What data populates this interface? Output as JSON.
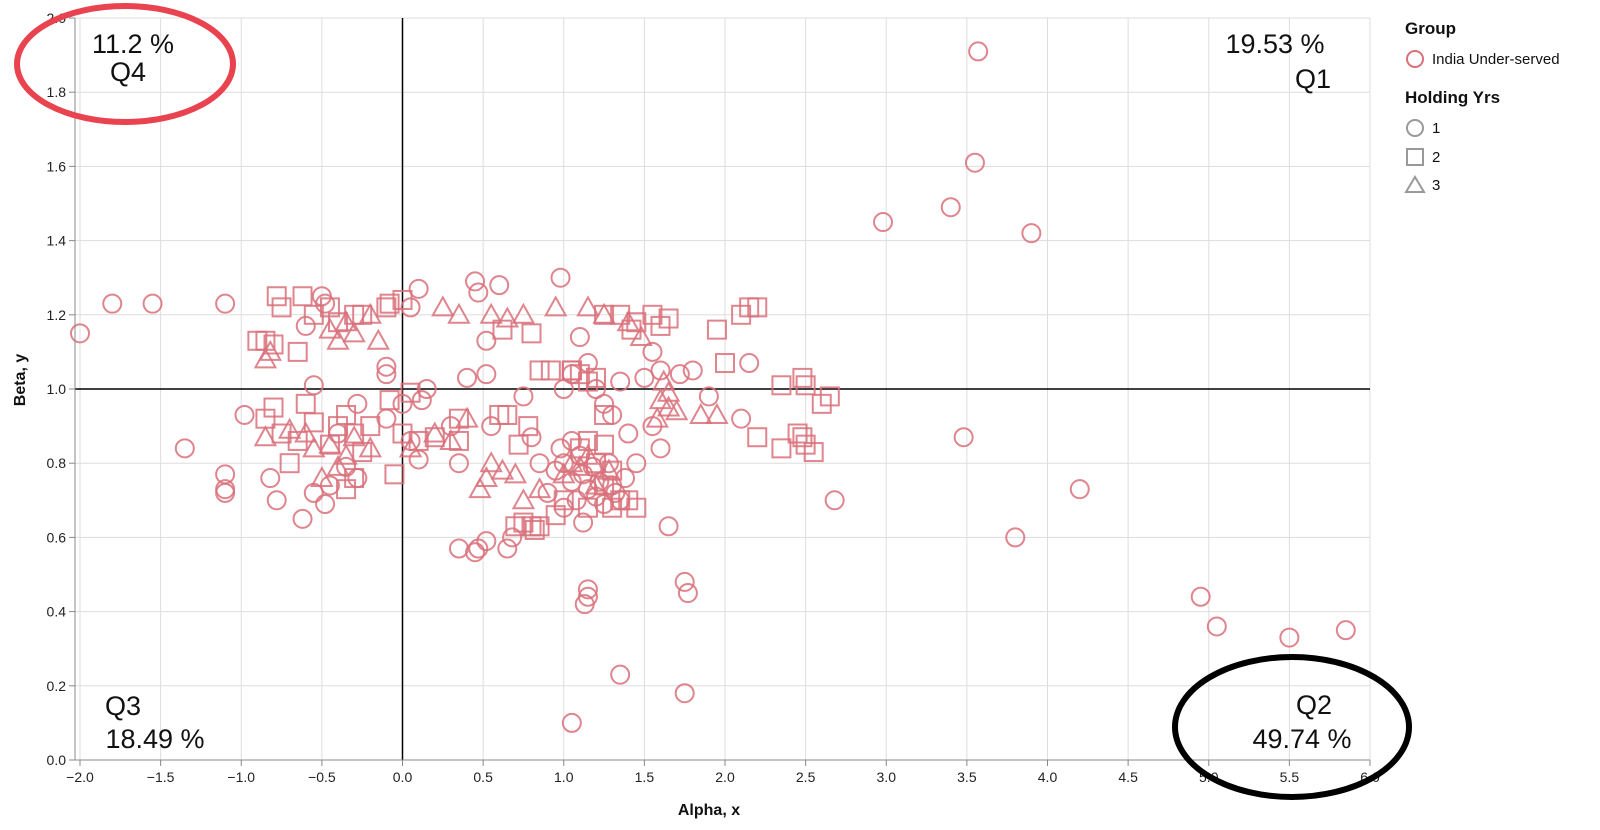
{
  "chart_data": {
    "type": "scatter",
    "xlabel": "Alpha, x",
    "ylabel": "Beta, y",
    "xlim": [
      -2.05,
      6.0
    ],
    "ylim": [
      0.0,
      2.0
    ],
    "x_ticks": [
      "−2.0",
      "−1.5",
      "−1.0",
      "−0.5",
      "0.0",
      "0.5",
      "1.0",
      "1.5",
      "2.0",
      "2.5",
      "3.0",
      "3.5",
      "4.0",
      "4.5",
      "5.0",
      "5.5",
      "6.0"
    ],
    "y_ticks": [
      "0.0",
      "0.2",
      "0.4",
      "0.6",
      "0.8",
      "1.0",
      "1.2",
      "1.4",
      "1.6",
      "1.8",
      "2.0"
    ],
    "grid": true,
    "reference_lines": {
      "x": 0.0,
      "y": 1.0
    },
    "marker_color": "#d9707a",
    "quadrant_labels": [
      {
        "name": "Q4",
        "percent": "11.2 %",
        "position": "top-left",
        "circled": "#e8434f"
      },
      {
        "name": "Q1",
        "percent": "19.53 %",
        "position": "top-right"
      },
      {
        "name": "Q3",
        "percent": "18.49 %",
        "position": "bottom-left"
      },
      {
        "name": "Q2",
        "percent": "49.74 %",
        "position": "bottom-right",
        "circled": "#000000"
      }
    ],
    "legend": {
      "placement": "right",
      "group_title": "Group",
      "group_items": [
        {
          "label": "India Under-served",
          "color": "#d9707a"
        }
      ],
      "shape_title": "Holding Yrs",
      "shape_items": [
        {
          "label": "1",
          "shape": "circle"
        },
        {
          "label": "2",
          "shape": "square"
        },
        {
          "label": "3",
          "shape": "triangle"
        }
      ]
    },
    "series": [
      {
        "holding": "1",
        "shape": "circle",
        "points": [
          [
            -2.0,
            1.15
          ],
          [
            -1.8,
            1.23
          ],
          [
            -1.55,
            1.23
          ],
          [
            -1.1,
            1.23
          ],
          [
            -1.35,
            0.84
          ],
          [
            -1.1,
            0.77
          ],
          [
            -1.1,
            0.73
          ],
          [
            -1.1,
            0.72
          ],
          [
            -0.98,
            0.93
          ],
          [
            -0.82,
            0.76
          ],
          [
            -0.78,
            0.7
          ],
          [
            -0.62,
            0.65
          ],
          [
            -0.55,
            0.72
          ],
          [
            -0.48,
            0.69
          ],
          [
            -0.45,
            0.74
          ],
          [
            -0.55,
            1.01
          ],
          [
            -0.5,
            1.25
          ],
          [
            -0.48,
            1.23
          ],
          [
            -0.6,
            1.17
          ],
          [
            -0.4,
            0.88
          ],
          [
            -0.35,
            0.79
          ],
          [
            -0.28,
            0.76
          ],
          [
            -0.28,
            0.96
          ],
          [
            -0.1,
            0.92
          ],
          [
            0.0,
            0.96
          ],
          [
            0.05,
            0.86
          ],
          [
            0.1,
            0.81
          ],
          [
            0.12,
            0.97
          ],
          [
            0.15,
            1.0
          ],
          [
            0.1,
            1.27
          ],
          [
            0.05,
            1.22
          ],
          [
            -0.1,
            1.06
          ],
          [
            -0.1,
            1.04
          ],
          [
            0.3,
            0.9
          ],
          [
            0.35,
            0.8
          ],
          [
            0.35,
            0.57
          ],
          [
            0.45,
            0.56
          ],
          [
            0.47,
            0.57
          ],
          [
            0.52,
            0.59
          ],
          [
            0.65,
            0.57
          ],
          [
            0.68,
            0.6
          ],
          [
            0.45,
            1.29
          ],
          [
            0.47,
            1.26
          ],
          [
            0.6,
            1.28
          ],
          [
            0.52,
            1.13
          ],
          [
            0.4,
            1.03
          ],
          [
            0.52,
            1.04
          ],
          [
            0.55,
            0.9
          ],
          [
            0.75,
            0.98
          ],
          [
            0.8,
            0.87
          ],
          [
            0.85,
            0.8
          ],
          [
            0.98,
            1.3
          ],
          [
            1.0,
            1.0
          ],
          [
            1.05,
            1.04
          ],
          [
            1.1,
            1.14
          ],
          [
            1.15,
            1.07
          ],
          [
            1.2,
            1.0
          ],
          [
            1.25,
            0.96
          ],
          [
            1.3,
            0.93
          ],
          [
            1.35,
            1.02
          ],
          [
            1.4,
            0.88
          ],
          [
            1.45,
            0.8
          ],
          [
            1.5,
            1.03
          ],
          [
            1.55,
            1.1
          ],
          [
            1.6,
            1.05
          ],
          [
            1.55,
            0.9
          ],
          [
            1.6,
            0.84
          ],
          [
            1.72,
            1.04
          ],
          [
            1.8,
            1.05
          ],
          [
            1.9,
            0.98
          ],
          [
            2.1,
            0.92
          ],
          [
            2.15,
            1.07
          ],
          [
            1.65,
            0.63
          ],
          [
            1.75,
            0.48
          ],
          [
            1.77,
            0.45
          ],
          [
            1.75,
            0.18
          ],
          [
            1.15,
            0.46
          ],
          [
            1.15,
            0.44
          ],
          [
            1.13,
            0.42
          ],
          [
            1.35,
            0.23
          ],
          [
            1.05,
            0.1
          ],
          [
            0.9,
            0.72
          ],
          [
            0.95,
            0.78
          ],
          [
            1.0,
            0.8
          ],
          [
            1.05,
            0.75
          ],
          [
            1.08,
            0.7
          ],
          [
            1.1,
            0.82
          ],
          [
            1.12,
            0.77
          ],
          [
            1.15,
            0.73
          ],
          [
            1.18,
            0.79
          ],
          [
            1.2,
            0.71
          ],
          [
            1.22,
            0.75
          ],
          [
            1.25,
            0.69
          ],
          [
            1.28,
            0.8
          ],
          [
            1.3,
            0.74
          ],
          [
            1.32,
            0.72
          ],
          [
            1.35,
            0.7
          ],
          [
            1.38,
            0.76
          ],
          [
            1.0,
            0.68
          ],
          [
            1.12,
            0.64
          ],
          [
            0.98,
            0.84
          ],
          [
            1.05,
            0.86
          ],
          [
            2.68,
            0.7
          ],
          [
            2.98,
            1.45
          ],
          [
            3.4,
            1.49
          ],
          [
            3.55,
            1.61
          ],
          [
            3.57,
            1.91
          ],
          [
            3.9,
            1.42
          ],
          [
            3.48,
            0.87
          ],
          [
            3.8,
            0.6
          ],
          [
            4.2,
            0.73
          ],
          [
            4.95,
            0.44
          ],
          [
            5.05,
            0.36
          ],
          [
            5.5,
            0.33
          ],
          [
            5.85,
            0.35
          ]
        ]
      },
      {
        "holding": "2",
        "shape": "square",
        "points": [
          [
            -0.9,
            1.13
          ],
          [
            -0.85,
            1.13
          ],
          [
            -0.8,
            1.12
          ],
          [
            -0.78,
            1.25
          ],
          [
            -0.75,
            1.22
          ],
          [
            -0.65,
            1.1
          ],
          [
            -0.62,
            1.25
          ],
          [
            -0.55,
            1.2
          ],
          [
            -0.45,
            1.22
          ],
          [
            -0.4,
            1.18
          ],
          [
            -0.3,
            1.2
          ],
          [
            -0.25,
            1.2
          ],
          [
            -0.1,
            1.22
          ],
          [
            -0.08,
            1.23
          ],
          [
            0.0,
            1.24
          ],
          [
            -0.85,
            0.92
          ],
          [
            -0.8,
            0.95
          ],
          [
            -0.75,
            0.88
          ],
          [
            -0.7,
            0.8
          ],
          [
            -0.65,
            0.86
          ],
          [
            -0.6,
            0.96
          ],
          [
            -0.55,
            0.91
          ],
          [
            -0.45,
            0.85
          ],
          [
            -0.4,
            0.9
          ],
          [
            -0.35,
            0.93
          ],
          [
            -0.3,
            0.88
          ],
          [
            -0.25,
            0.83
          ],
          [
            -0.2,
            0.9
          ],
          [
            -0.3,
            0.76
          ],
          [
            -0.35,
            0.73
          ],
          [
            -0.05,
            0.77
          ],
          [
            0.0,
            0.88
          ],
          [
            0.1,
            0.86
          ],
          [
            0.2,
            0.87
          ],
          [
            0.35,
            0.92
          ],
          [
            0.35,
            0.86
          ],
          [
            0.6,
            0.93
          ],
          [
            0.65,
            0.93
          ],
          [
            0.72,
            0.85
          ],
          [
            0.78,
            0.9
          ],
          [
            0.8,
            0.63
          ],
          [
            0.82,
            0.62
          ],
          [
            0.7,
            0.63
          ],
          [
            0.75,
            0.64
          ],
          [
            0.85,
            0.63
          ],
          [
            0.95,
            0.66
          ],
          [
            1.0,
            0.7
          ],
          [
            1.1,
            0.84
          ],
          [
            1.15,
            0.86
          ],
          [
            1.2,
            0.8
          ],
          [
            1.25,
            0.85
          ],
          [
            1.3,
            0.78
          ],
          [
            1.35,
            0.7
          ],
          [
            1.4,
            0.7
          ],
          [
            1.45,
            0.68
          ],
          [
            1.3,
            0.68
          ],
          [
            1.15,
            0.68
          ],
          [
            1.25,
            0.74
          ],
          [
            1.05,
            1.05
          ],
          [
            1.1,
            1.04
          ],
          [
            1.25,
            1.2
          ],
          [
            1.35,
            1.2
          ],
          [
            1.45,
            1.18
          ],
          [
            1.55,
            1.2
          ],
          [
            1.6,
            1.17
          ],
          [
            1.65,
            1.19
          ],
          [
            1.42,
            1.16
          ],
          [
            0.85,
            1.05
          ],
          [
            0.92,
            1.05
          ],
          [
            1.05,
            1.05
          ],
          [
            1.15,
            1.02
          ],
          [
            1.2,
            1.03
          ],
          [
            0.8,
            1.15
          ],
          [
            0.62,
            1.16
          ],
          [
            1.25,
            0.93
          ],
          [
            2.0,
            1.07
          ],
          [
            2.35,
            1.01
          ],
          [
            2.48,
            1.03
          ],
          [
            2.5,
            1.01
          ],
          [
            2.6,
            0.96
          ],
          [
            2.65,
            0.98
          ],
          [
            2.45,
            0.88
          ],
          [
            2.48,
            0.87
          ],
          [
            2.5,
            0.85
          ],
          [
            2.55,
            0.83
          ],
          [
            2.35,
            0.84
          ],
          [
            2.2,
            0.87
          ],
          [
            2.15,
            1.22
          ],
          [
            2.2,
            1.22
          ],
          [
            2.1,
            1.2
          ],
          [
            1.95,
            1.16
          ],
          [
            -0.08,
            0.97
          ],
          [
            0.05,
            0.99
          ]
        ]
      },
      {
        "holding": "3",
        "shape": "triangle",
        "points": [
          [
            -0.85,
            1.08
          ],
          [
            -0.82,
            1.1
          ],
          [
            -0.45,
            1.16
          ],
          [
            -0.4,
            1.13
          ],
          [
            -0.35,
            1.18
          ],
          [
            -0.3,
            1.15
          ],
          [
            -0.2,
            1.2
          ],
          [
            -0.15,
            1.13
          ],
          [
            0.25,
            1.22
          ],
          [
            0.35,
            1.2
          ],
          [
            0.55,
            1.2
          ],
          [
            0.65,
            1.19
          ],
          [
            0.75,
            1.2
          ],
          [
            0.95,
            1.22
          ],
          [
            1.15,
            1.22
          ],
          [
            1.25,
            1.2
          ],
          [
            1.4,
            1.18
          ],
          [
            1.48,
            1.14
          ],
          [
            -0.85,
            0.87
          ],
          [
            -0.7,
            0.89
          ],
          [
            -0.6,
            0.88
          ],
          [
            -0.55,
            0.84
          ],
          [
            -0.45,
            0.85
          ],
          [
            -0.35,
            0.82
          ],
          [
            -0.3,
            0.87
          ],
          [
            -0.4,
            0.79
          ],
          [
            -0.5,
            0.76
          ],
          [
            -0.2,
            0.84
          ],
          [
            0.05,
            0.84
          ],
          [
            0.2,
            0.88
          ],
          [
            0.3,
            0.86
          ],
          [
            0.4,
            0.92
          ],
          [
            0.55,
            0.8
          ],
          [
            0.62,
            0.78
          ],
          [
            0.7,
            0.77
          ],
          [
            0.48,
            0.73
          ],
          [
            0.52,
            0.76
          ],
          [
            0.75,
            0.7
          ],
          [
            0.85,
            0.73
          ],
          [
            1.05,
            0.8
          ],
          [
            1.1,
            0.79
          ],
          [
            1.15,
            0.82
          ],
          [
            1.2,
            0.74
          ],
          [
            1.0,
            0.77
          ],
          [
            1.28,
            0.78
          ],
          [
            1.58,
            0.92
          ],
          [
            1.65,
            0.95
          ],
          [
            1.7,
            0.94
          ],
          [
            1.85,
            0.93
          ],
          [
            1.62,
            1.02
          ],
          [
            1.65,
            0.99
          ],
          [
            1.95,
            0.93
          ],
          [
            1.6,
            0.97
          ]
        ]
      }
    ]
  }
}
